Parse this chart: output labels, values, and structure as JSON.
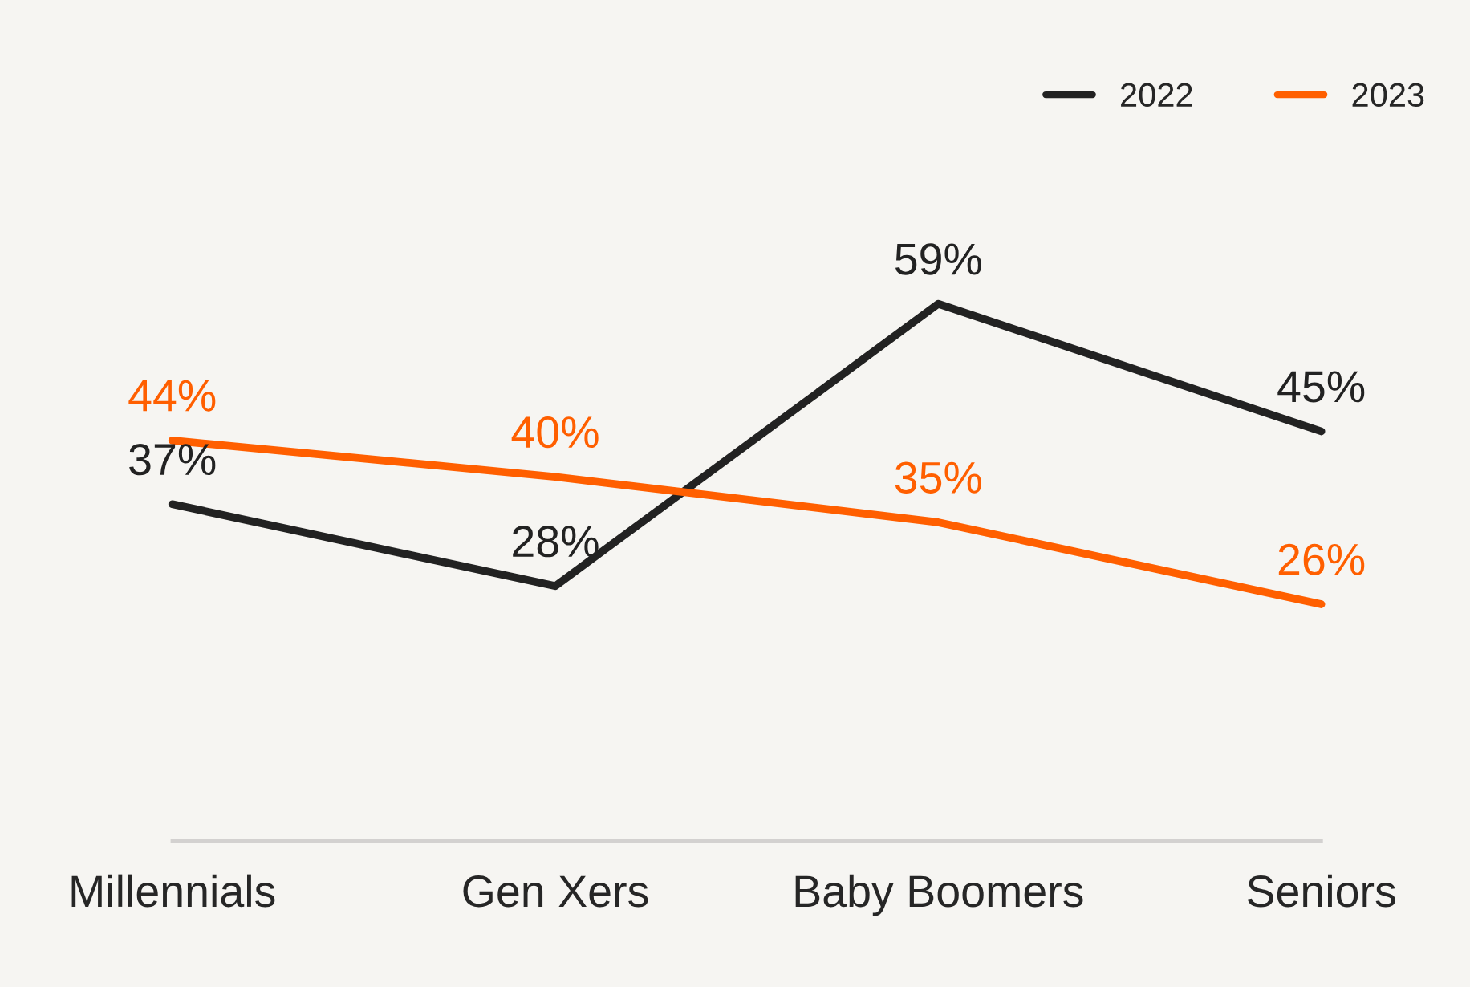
{
  "chart_data": {
    "type": "line",
    "categories": [
      "Millennials",
      "Gen Xers",
      "Baby Boomers",
      "Seniors"
    ],
    "series": [
      {
        "name": "2022",
        "color": "#222222",
        "values": [
          37,
          28,
          59,
          45
        ],
        "value_labels": [
          "37%",
          "28%",
          "59%",
          "45%"
        ]
      },
      {
        "name": "2023",
        "color": "#ff5f00",
        "values": [
          44,
          40,
          35,
          26
        ],
        "value_labels": [
          "44%",
          "40%",
          "35%",
          "26%"
        ]
      }
    ],
    "legend": "top right",
    "grid": false,
    "marker": "none",
    "line_style": "solid",
    "tick_labels": "x"
  }
}
